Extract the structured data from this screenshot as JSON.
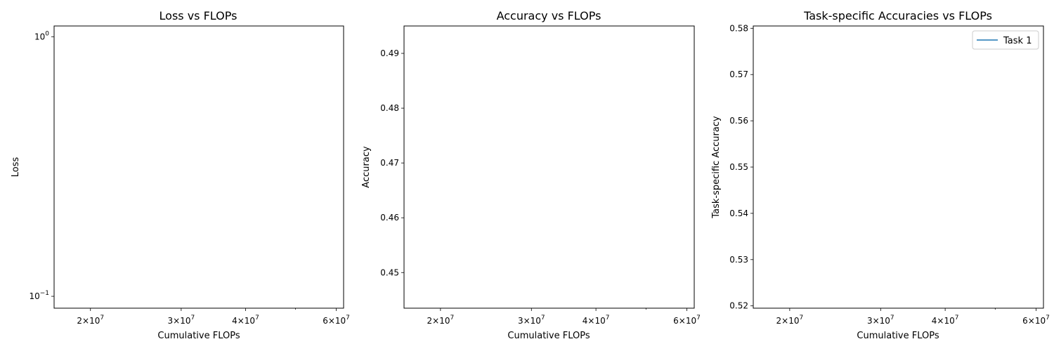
{
  "chart_data": [
    {
      "type": "line",
      "title": "Loss vs FLOPs",
      "xlabel": "Cumulative FLOPs",
      "ylabel": "Loss",
      "xscale": "log",
      "yscale": "log",
      "xlim": [
        17000000,
        62000000
      ],
      "ylim": [
        0.09,
        1.1
      ],
      "x_ticks": [
        {
          "value": 20000000,
          "mantissa": "2",
          "exponent": "7"
        },
        {
          "value": 30000000,
          "mantissa": "3",
          "exponent": "7"
        },
        {
          "value": 40000000,
          "mantissa": "4",
          "exponent": "7"
        },
        {
          "value": 60000000,
          "mantissa": "6",
          "exponent": "7"
        }
      ],
      "y_ticks": [
        {
          "value": 1,
          "mantissa": "10",
          "exponent": "0"
        },
        {
          "value": 0.1,
          "mantissa": "10",
          "exponent": "−1"
        }
      ],
      "grid": false,
      "series": []
    },
    {
      "type": "line",
      "title": "Accuracy vs FLOPs",
      "xlabel": "Cumulative FLOPs",
      "ylabel": "Accuracy",
      "xscale": "log",
      "yscale": "linear",
      "xlim": [
        17000000,
        62000000
      ],
      "ylim": [
        0.4435,
        0.495
      ],
      "x_ticks": [
        {
          "value": 20000000,
          "mantissa": "2",
          "exponent": "7"
        },
        {
          "value": 30000000,
          "mantissa": "3",
          "exponent": "7"
        },
        {
          "value": 40000000,
          "mantissa": "4",
          "exponent": "7"
        },
        {
          "value": 60000000,
          "mantissa": "6",
          "exponent": "7"
        }
      ],
      "y_ticks": [
        {
          "value": 0.45,
          "label": "0.45"
        },
        {
          "value": 0.46,
          "label": "0.46"
        },
        {
          "value": 0.47,
          "label": "0.47"
        },
        {
          "value": 0.48,
          "label": "0.48"
        },
        {
          "value": 0.49,
          "label": "0.49"
        }
      ],
      "grid": false,
      "series": []
    },
    {
      "type": "line",
      "title": "Task-specific Accuracies vs FLOPs",
      "xlabel": "Cumulative FLOPs",
      "ylabel": "Task-specific Accuracy",
      "xscale": "log",
      "yscale": "linear",
      "xlim": [
        17000000,
        62000000
      ],
      "ylim": [
        0.5195,
        0.5805
      ],
      "x_ticks": [
        {
          "value": 20000000,
          "mantissa": "2",
          "exponent": "7"
        },
        {
          "value": 30000000,
          "mantissa": "3",
          "exponent": "7"
        },
        {
          "value": 40000000,
          "mantissa": "4",
          "exponent": "7"
        },
        {
          "value": 60000000,
          "mantissa": "6",
          "exponent": "7"
        }
      ],
      "y_ticks": [
        {
          "value": 0.52,
          "label": "0.52"
        },
        {
          "value": 0.53,
          "label": "0.53"
        },
        {
          "value": 0.54,
          "label": "0.54"
        },
        {
          "value": 0.55,
          "label": "0.55"
        },
        {
          "value": 0.56,
          "label": "0.56"
        },
        {
          "value": 0.57,
          "label": "0.57"
        },
        {
          "value": 0.58,
          "label": "0.58"
        }
      ],
      "grid": false,
      "legend": {
        "placement": "top-right",
        "entries": [
          {
            "label": "Task 1",
            "color": "#1f77b4"
          }
        ]
      },
      "series": [
        {
          "name": "Task 1",
          "color": "#1f77b4",
          "x": [],
          "y": []
        }
      ]
    }
  ]
}
